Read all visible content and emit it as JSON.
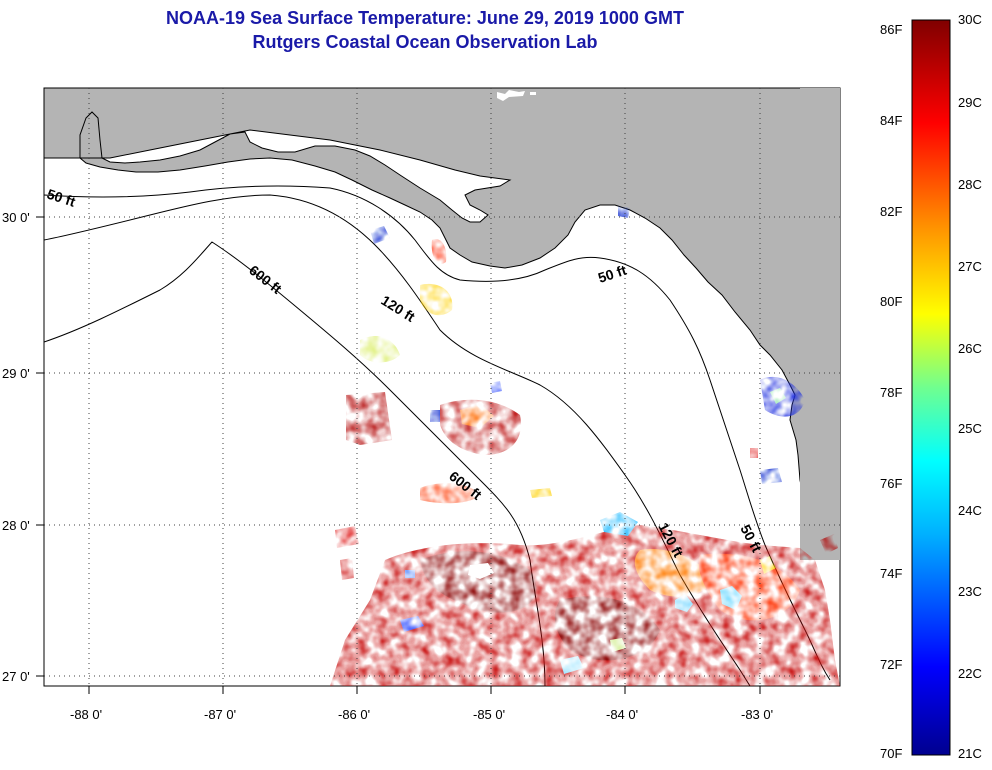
{
  "title": "NOAA-19 Sea Surface Temperature:  June 29, 2019 1000 GMT",
  "subtitle": "Rutgers Coastal Ocean Observation Lab",
  "map": {
    "region": "Northeastern Gulf of Mexico / Florida Big Bend",
    "land_color": "#b4b4b4",
    "no_data_color": "#ffffff",
    "lon_ticks": [
      "-88 0'",
      "-87 0'",
      "-86 0'",
      "-85 0'",
      "-84 0'",
      "-83 0'"
    ],
    "lat_ticks": [
      "30 0'",
      "29 0'",
      "28 0'",
      "27 0'"
    ],
    "lon_range": [
      -88.35,
      -82.5
    ],
    "lat_range": [
      26.95,
      30.9
    ],
    "grid": "dotted",
    "depth_contour_labels": [
      "50 ft",
      "600 ft",
      "120 ft",
      "50 ft",
      "600 ft",
      "120 ft",
      "50 ft"
    ]
  },
  "colorbar": {
    "f_labels": [
      "86F",
      "84F",
      "82F",
      "80F",
      "78F",
      "76F",
      "74F",
      "72F",
      "70F"
    ],
    "c_labels": [
      "30C",
      "29C",
      "28C",
      "27C",
      "26C",
      "25C",
      "24C",
      "23C",
      "22C",
      "21C"
    ],
    "colors": [
      "#00008f",
      "#0000ff",
      "#00b0ff",
      "#00ffff",
      "#70ff8f",
      "#ffff00",
      "#ff9000",
      "#ff0000",
      "#800000"
    ]
  }
}
